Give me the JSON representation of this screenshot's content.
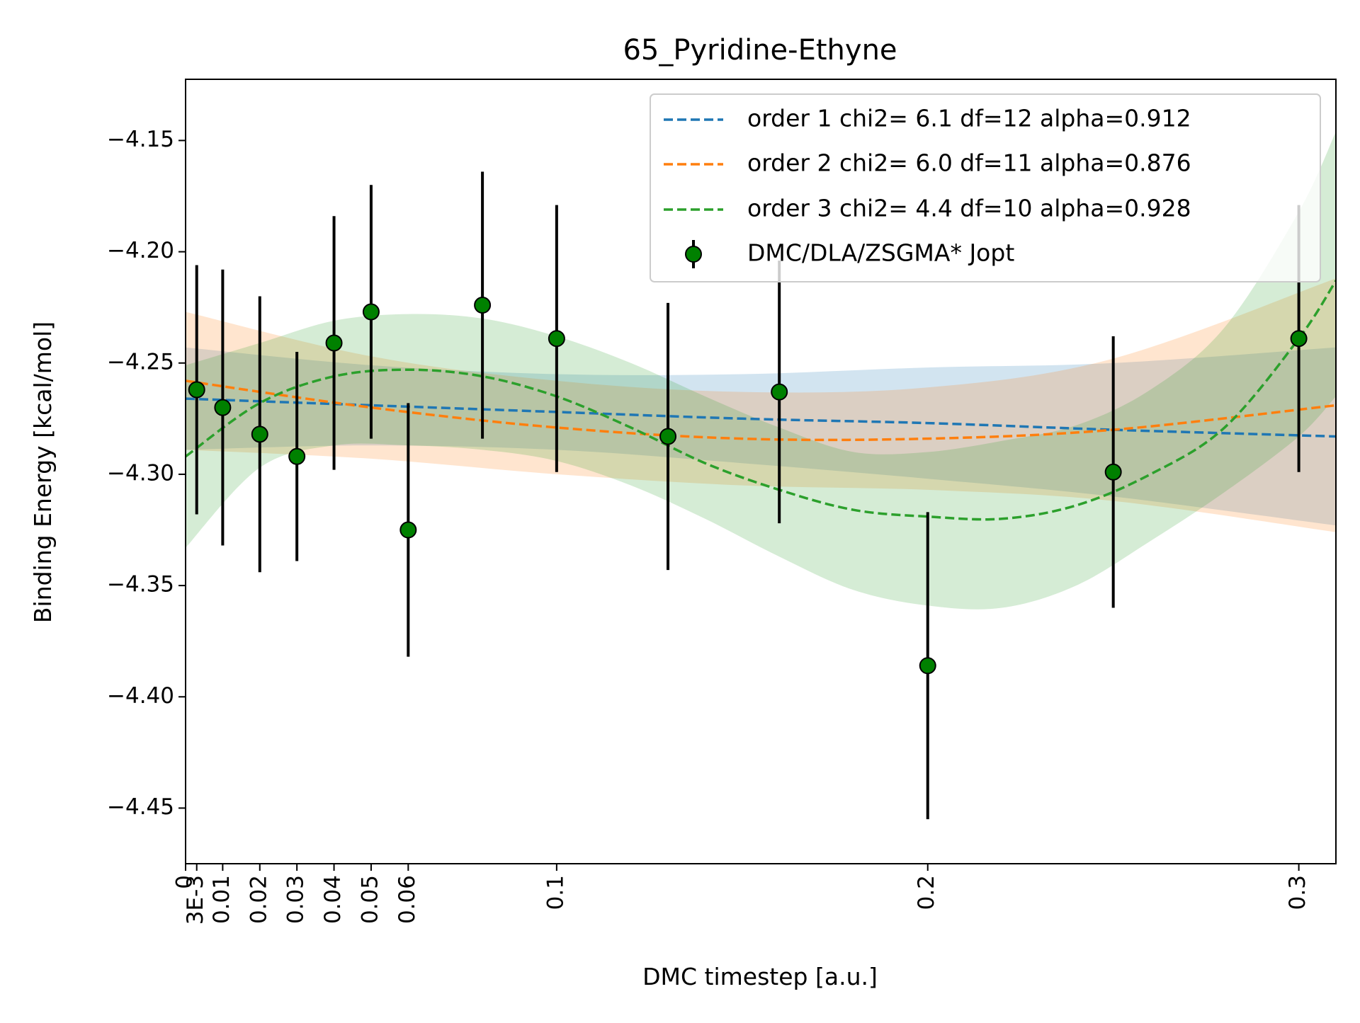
{
  "chart_data": {
    "type": "scatter",
    "title": "65_Pyridine-Ethyne",
    "xlabel": "DMC timestep [a.u.]",
    "ylabel": "Binding Energy [kcal/mol]",
    "xlim": [
      0,
      0.31
    ],
    "ylim": [
      -4.475,
      -4.1225
    ],
    "x_ticks": [
      {
        "value": 0,
        "label": "0"
      },
      {
        "value": 0.003,
        "label": "3E-3"
      },
      {
        "value": 0.01,
        "label": "0.01"
      },
      {
        "value": 0.02,
        "label": "0.02"
      },
      {
        "value": 0.03,
        "label": "0.03"
      },
      {
        "value": 0.04,
        "label": "0.04"
      },
      {
        "value": 0.05,
        "label": "0.05"
      },
      {
        "value": 0.06,
        "label": "0.06"
      },
      {
        "value": 0.1,
        "label": "0.1"
      },
      {
        "value": 0.2,
        "label": "0.2"
      },
      {
        "value": 0.3,
        "label": "0.3"
      }
    ],
    "y_ticks": [
      {
        "value": -4.15,
        "label": "−4.15"
      },
      {
        "value": -4.2,
        "label": "−4.20"
      },
      {
        "value": -4.25,
        "label": "−4.25"
      },
      {
        "value": -4.3,
        "label": "−4.30"
      },
      {
        "value": -4.35,
        "label": "−4.35"
      },
      {
        "value": -4.4,
        "label": "−4.40"
      },
      {
        "value": -4.45,
        "label": "−4.45"
      }
    ],
    "points": {
      "name": "DMC/DLA/ZSGMA* Jopt",
      "color": "#008000",
      "x": [
        0.003,
        0.01,
        0.02,
        0.03,
        0.04,
        0.05,
        0.06,
        0.08,
        0.1,
        0.13,
        0.16,
        0.2,
        0.25,
        0.3
      ],
      "y": [
        -4.262,
        -4.27,
        -4.282,
        -4.292,
        -4.241,
        -4.227,
        -4.325,
        -4.224,
        -4.239,
        -4.283,
        -4.263,
        -4.386,
        -4.299,
        -4.239
      ],
      "err": [
        0.056,
        0.062,
        0.062,
        0.047,
        0.057,
        0.057,
        0.057,
        0.06,
        0.06,
        0.06,
        0.059,
        0.069,
        0.061,
        0.06
      ]
    },
    "fits": [
      {
        "name": "order 1 chi2= 6.1 df=12 alpha=0.912",
        "color": "#1f77b4",
        "x": [
          0,
          0.05,
          0.1,
          0.15,
          0.2,
          0.25,
          0.31
        ],
        "y": [
          -4.266,
          -4.269,
          -4.272,
          -4.275,
          -4.277,
          -4.28,
          -4.283
        ],
        "lower": [
          -4.289,
          -4.287,
          -4.289,
          -4.295,
          -4.302,
          -4.31,
          -4.323
        ],
        "upper": [
          -4.243,
          -4.251,
          -4.255,
          -4.255,
          -4.252,
          -4.25,
          -4.243
        ]
      },
      {
        "name": "order 2 chi2= 6.0 df=11 alpha=0.876",
        "color": "#ff7f0e",
        "x": [
          0,
          0.05,
          0.1,
          0.15,
          0.2,
          0.25,
          0.31
        ],
        "y": [
          -4.258,
          -4.27,
          -4.279,
          -4.284,
          -4.284,
          -4.28,
          -4.269
        ],
        "lower": [
          -4.289,
          -4.293,
          -4.3,
          -4.305,
          -4.307,
          -4.312,
          -4.326
        ],
        "upper": [
          -4.227,
          -4.247,
          -4.258,
          -4.263,
          -4.261,
          -4.248,
          -4.212
        ]
      },
      {
        "name": "order 3 chi2= 4.4 df=10 alpha=0.928",
        "color": "#2ca02c",
        "x": [
          0,
          0.02,
          0.04,
          0.06,
          0.08,
          0.1,
          0.12,
          0.14,
          0.16,
          0.18,
          0.2,
          0.22,
          0.24,
          0.26,
          0.28,
          0.3,
          0.31
        ],
        "y": [
          -4.292,
          -4.268,
          -4.256,
          -4.253,
          -4.256,
          -4.265,
          -4.279,
          -4.295,
          -4.307,
          -4.316,
          -4.319,
          -4.32,
          -4.314,
          -4.3,
          -4.279,
          -4.239,
          -4.213
        ],
        "lower": [
          -4.333,
          -4.297,
          -4.287,
          -4.287,
          -4.289,
          -4.294,
          -4.305,
          -4.32,
          -4.337,
          -4.352,
          -4.359,
          -4.36,
          -4.35,
          -4.33,
          -4.308,
          -4.283,
          -4.265
        ],
        "upper": [
          -4.251,
          -4.241,
          -4.231,
          -4.228,
          -4.23,
          -4.238,
          -4.25,
          -4.265,
          -4.279,
          -4.29,
          -4.29,
          -4.285,
          -4.278,
          -4.262,
          -4.234,
          -4.182,
          -4.146
        ]
      }
    ],
    "legend_position": "top-right",
    "grid": false
  }
}
